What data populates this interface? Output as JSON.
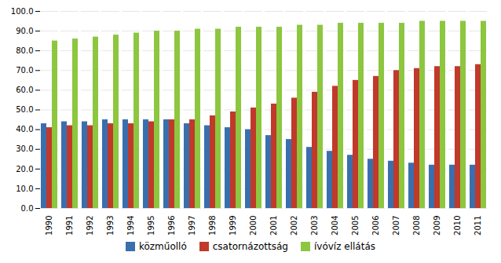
{
  "chart_data": {
    "type": "bar",
    "categories": [
      "1990",
      "1991",
      "1992",
      "1993",
      "1994",
      "1995",
      "1996",
      "1997",
      "1998",
      "1999",
      "2000",
      "2001",
      "2002",
      "2003",
      "2004",
      "2005",
      "2006",
      "2007",
      "2008",
      "2009",
      "2010",
      "2011"
    ],
    "series": [
      {
        "name": "közműolló",
        "color": "#3a6fad",
        "values": [
          43,
          44,
          44,
          45,
          45,
          45,
          45,
          43,
          42,
          41,
          40,
          37,
          35,
          31,
          29,
          27,
          25,
          24,
          23,
          22,
          22,
          22
        ]
      },
      {
        "name": "csatornázottság",
        "color": "#c0392b",
        "values": [
          41,
          42,
          42,
          43,
          43,
          44,
          45,
          45,
          47,
          49,
          51,
          53,
          56,
          59,
          62,
          65,
          67,
          70,
          71,
          72,
          72,
          73
        ]
      },
      {
        "name": "ívóvíz ellátás",
        "color": "#8dc63f",
        "values": [
          85,
          86,
          87,
          88,
          89,
          90,
          90,
          91,
          91,
          92,
          92,
          92,
          93,
          93,
          94,
          94,
          94,
          94,
          95,
          95,
          95,
          95
        ]
      }
    ],
    "ylim": [
      0,
      100
    ],
    "yticks": [
      {
        "value": 0,
        "label": "0.0"
      },
      {
        "value": 10,
        "label": "10.0"
      },
      {
        "value": 20,
        "label": "20.0"
      },
      {
        "value": 30,
        "label": "30.0"
      },
      {
        "value": 40,
        "label": "40.0"
      },
      {
        "value": 50,
        "label": "50.0"
      },
      {
        "value": 60,
        "label": "60.0"
      },
      {
        "value": 70,
        "label": "70.0"
      },
      {
        "value": 80,
        "label": "80.0"
      },
      {
        "value": 90,
        "label": "90.0"
      },
      {
        "value": 100,
        "label": "100.0"
      }
    ],
    "grid": true,
    "legend": "bottom"
  }
}
